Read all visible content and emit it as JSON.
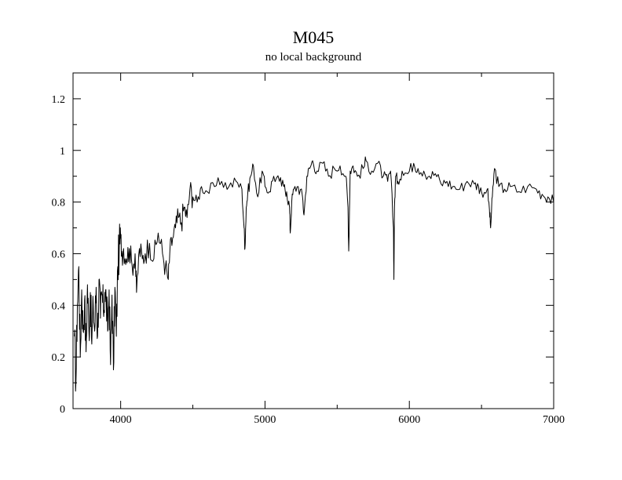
{
  "chart_data": {
    "type": "line",
    "title": "M045",
    "subtitle": "no local background",
    "xlabel": "",
    "ylabel": "",
    "xlim": [
      3670,
      7000
    ],
    "ylim": [
      0,
      1.3
    ],
    "x_ticks": [
      4000,
      5000,
      6000,
      7000
    ],
    "x_tick_labels": [
      "4000",
      "5000",
      "6000",
      "7000"
    ],
    "y_ticks": [
      0,
      0.2,
      0.4,
      0.6,
      0.8,
      1,
      1.2
    ],
    "y_tick_labels": [
      "0",
      "0.2",
      "0.4",
      "0.6",
      "0.8",
      "1",
      "1.2"
    ],
    "x_minor_step": 500,
    "y_minor_step": 0.1,
    "grid": false,
    "legend": "none",
    "colors": {
      "line": "#000000",
      "axes": "#000000",
      "background": "#ffffff"
    },
    "series": [
      {
        "x": [
          3680,
          3690,
          3700,
          3710,
          3720,
          3730,
          3740,
          3750,
          3760,
          3770,
          3780,
          3790,
          3800,
          3810,
          3820,
          3830,
          3840,
          3850,
          3860,
          3870,
          3880,
          3890,
          3900,
          3910,
          3920,
          3930,
          3940,
          3950,
          3960,
          3970,
          3980,
          3990,
          4000,
          4010,
          4020,
          4040,
          4060,
          4080,
          4100,
          4110,
          4130,
          4150,
          4170,
          4200,
          4230,
          4260,
          4290,
          4310,
          4330,
          4340,
          4360,
          4380,
          4400,
          4420,
          4440,
          4460,
          4480,
          4500,
          4530,
          4560,
          4600,
          4650,
          4700,
          4750,
          4800,
          4840,
          4855,
          4861,
          4870,
          4880,
          4900,
          4920,
          4950,
          4980,
          5000,
          5030,
          5060,
          5100,
          5130,
          5150,
          5170,
          5175,
          5185,
          5200,
          5230,
          5260,
          5270,
          5290,
          5310,
          5330,
          5360,
          5400,
          5440,
          5480,
          5520,
          5560,
          5575,
          5580,
          5590,
          5610,
          5640,
          5680,
          5700,
          5740,
          5780,
          5820,
          5850,
          5870,
          5890,
          5893,
          5897,
          5905,
          5920,
          5950,
          5990,
          6030,
          6060,
          6100,
          6140,
          6180,
          6220,
          6260,
          6300,
          6350,
          6400,
          6450,
          6480,
          6500,
          6540,
          6555,
          6563,
          6575,
          6590,
          6620,
          6660,
          6700,
          6760,
          6820,
          6880,
          6920,
          6960,
          7000
        ],
        "y": [
          0.28,
          0.1,
          0.4,
          0.55,
          0.2,
          0.46,
          0.3,
          0.42,
          0.22,
          0.48,
          0.3,
          0.45,
          0.25,
          0.4,
          0.3,
          0.47,
          0.28,
          0.5,
          0.35,
          0.44,
          0.38,
          0.45,
          0.42,
          0.3,
          0.46,
          0.17,
          0.44,
          0.15,
          0.47,
          0.28,
          0.55,
          0.62,
          0.66,
          0.6,
          0.62,
          0.58,
          0.62,
          0.55,
          0.6,
          0.45,
          0.62,
          0.58,
          0.6,
          0.64,
          0.58,
          0.68,
          0.6,
          0.55,
          0.5,
          0.6,
          0.66,
          0.7,
          0.74,
          0.72,
          0.78,
          0.74,
          0.85,
          0.82,
          0.8,
          0.86,
          0.84,
          0.86,
          0.88,
          0.86,
          0.88,
          0.85,
          0.7,
          0.62,
          0.78,
          0.83,
          0.9,
          0.94,
          0.82,
          0.92,
          0.86,
          0.84,
          0.9,
          0.88,
          0.86,
          0.84,
          0.78,
          0.68,
          0.8,
          0.85,
          0.86,
          0.82,
          0.75,
          0.9,
          0.93,
          0.96,
          0.92,
          0.95,
          0.9,
          0.93,
          0.94,
          0.9,
          0.78,
          0.61,
          0.92,
          0.94,
          0.9,
          0.93,
          0.96,
          0.92,
          0.95,
          0.9,
          0.88,
          0.92,
          0.7,
          0.5,
          0.78,
          0.9,
          0.88,
          0.92,
          0.91,
          0.95,
          0.93,
          0.92,
          0.9,
          0.91,
          0.87,
          0.88,
          0.86,
          0.85,
          0.88,
          0.87,
          0.86,
          0.84,
          0.85,
          0.77,
          0.7,
          0.82,
          0.93,
          0.86,
          0.85,
          0.86,
          0.84,
          0.86,
          0.85,
          0.83,
          0.82,
          0.8
        ]
      }
    ]
  }
}
